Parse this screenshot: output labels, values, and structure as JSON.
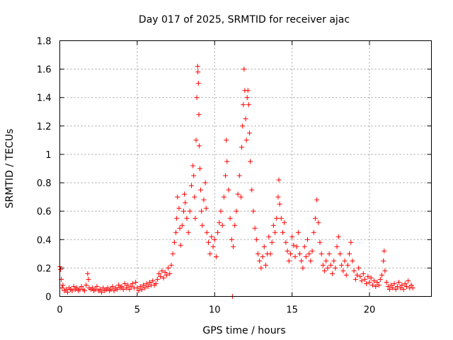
{
  "chart_data": {
    "type": "scatter",
    "title": "Day 017 of 2025, SRMTID for receiver ajac",
    "xlabel": "GPS time / hours",
    "ylabel": "SRMTID / TECUs",
    "xlim": [
      0,
      24
    ],
    "ylim": [
      0,
      1.8
    ],
    "xticks": [
      0,
      5,
      10,
      15,
      20
    ],
    "xtick_labels": [
      "0",
      "5",
      "10",
      "15",
      "20"
    ],
    "yticks": [
      0,
      0.2,
      0.4,
      0.6,
      0.8,
      1.0,
      1.2,
      1.4,
      1.6,
      1.8
    ],
    "ytick_labels": [
      "0",
      "0.2",
      "0.4",
      "0.6",
      "0.8",
      "1",
      "1.2",
      "1.4",
      "1.6",
      "1.8"
    ],
    "grid": true,
    "marker": "+",
    "color": "#ff0000",
    "series": [
      {
        "name": "SRMTID",
        "points": [
          [
            0.0,
            0.21
          ],
          [
            0.05,
            0.19
          ],
          [
            0.1,
            0.12
          ],
          [
            0.15,
            0.06
          ],
          [
            0.2,
            0.08
          ],
          [
            0.3,
            0.04
          ],
          [
            0.4,
            0.05
          ],
          [
            0.5,
            0.03
          ],
          [
            0.6,
            0.06
          ],
          [
            0.7,
            0.05
          ],
          [
            0.8,
            0.04
          ],
          [
            0.9,
            0.07
          ],
          [
            1.0,
            0.05
          ],
          [
            1.1,
            0.06
          ],
          [
            1.2,
            0.04
          ],
          [
            1.3,
            0.05
          ],
          [
            1.4,
            0.07
          ],
          [
            1.5,
            0.05
          ],
          [
            1.6,
            0.04
          ],
          [
            1.7,
            0.08
          ],
          [
            1.8,
            0.16
          ],
          [
            1.85,
            0.12
          ],
          [
            1.9,
            0.06
          ],
          [
            2.0,
            0.05
          ],
          [
            2.1,
            0.06
          ],
          [
            2.2,
            0.04
          ],
          [
            2.3,
            0.05
          ],
          [
            2.4,
            0.07
          ],
          [
            2.5,
            0.04
          ],
          [
            2.6,
            0.05
          ],
          [
            2.7,
            0.03
          ],
          [
            2.8,
            0.06
          ],
          [
            2.9,
            0.04
          ],
          [
            3.0,
            0.05
          ],
          [
            3.1,
            0.06
          ],
          [
            3.2,
            0.04
          ],
          [
            3.3,
            0.05
          ],
          [
            3.4,
            0.07
          ],
          [
            3.5,
            0.04
          ],
          [
            3.6,
            0.06
          ],
          [
            3.7,
            0.05
          ],
          [
            3.8,
            0.08
          ],
          [
            3.9,
            0.06
          ],
          [
            4.0,
            0.07
          ],
          [
            4.1,
            0.05
          ],
          [
            4.2,
            0.09
          ],
          [
            4.3,
            0.06
          ],
          [
            4.4,
            0.08
          ],
          [
            4.5,
            0.05
          ],
          [
            4.6,
            0.07
          ],
          [
            4.7,
            0.09
          ],
          [
            4.8,
            0.06
          ],
          [
            4.9,
            0.1
          ],
          [
            5.0,
            0.06
          ],
          [
            5.1,
            0.04
          ],
          [
            5.2,
            0.07
          ],
          [
            5.3,
            0.05
          ],
          [
            5.4,
            0.08
          ],
          [
            5.5,
            0.06
          ],
          [
            5.6,
            0.09
          ],
          [
            5.7,
            0.07
          ],
          [
            5.8,
            0.1
          ],
          [
            5.9,
            0.08
          ],
          [
            6.0,
            0.11
          ],
          [
            6.1,
            0.08
          ],
          [
            6.2,
            0.09
          ],
          [
            6.3,
            0.12
          ],
          [
            6.4,
            0.16
          ],
          [
            6.5,
            0.14
          ],
          [
            6.6,
            0.18
          ],
          [
            6.7,
            0.13
          ],
          [
            6.8,
            0.17
          ],
          [
            6.9,
            0.15
          ],
          [
            7.0,
            0.2
          ],
          [
            7.1,
            0.16
          ],
          [
            7.2,
            0.22
          ],
          [
            7.3,
            0.3
          ],
          [
            7.4,
            0.38
          ],
          [
            7.5,
            0.45
          ],
          [
            7.55,
            0.55
          ],
          [
            7.6,
            0.7
          ],
          [
            7.7,
            0.62
          ],
          [
            7.75,
            0.48
          ],
          [
            7.8,
            0.36
          ],
          [
            7.9,
            0.5
          ],
          [
            8.0,
            0.6
          ],
          [
            8.05,
            0.72
          ],
          [
            8.1,
            0.66
          ],
          [
            8.2,
            0.55
          ],
          [
            8.3,
            0.45
          ],
          [
            8.4,
            0.6
          ],
          [
            8.5,
            0.78
          ],
          [
            8.6,
            0.92
          ],
          [
            8.65,
            0.85
          ],
          [
            8.7,
            0.7
          ],
          [
            8.75,
            0.55
          ],
          [
            8.8,
            1.1
          ],
          [
            8.85,
            1.4
          ],
          [
            8.9,
            1.62
          ],
          [
            8.92,
            1.58
          ],
          [
            8.95,
            1.5
          ],
          [
            8.98,
            1.28
          ],
          [
            9.0,
            1.06
          ],
          [
            9.05,
            0.9
          ],
          [
            9.1,
            0.75
          ],
          [
            9.15,
            0.6
          ],
          [
            9.2,
            0.5
          ],
          [
            9.3,
            0.68
          ],
          [
            9.4,
            0.8
          ],
          [
            9.45,
            0.62
          ],
          [
            9.5,
            0.45
          ],
          [
            9.6,
            0.38
          ],
          [
            9.7,
            0.3
          ],
          [
            9.8,
            0.42
          ],
          [
            9.9,
            0.35
          ],
          [
            10.0,
            0.4
          ],
          [
            10.1,
            0.28
          ],
          [
            10.2,
            0.45
          ],
          [
            10.3,
            0.52
          ],
          [
            10.4,
            0.6
          ],
          [
            10.5,
            0.5
          ],
          [
            10.6,
            0.7
          ],
          [
            10.7,
            0.85
          ],
          [
            10.75,
            1.1
          ],
          [
            10.8,
            0.95
          ],
          [
            10.9,
            0.75
          ],
          [
            11.0,
            0.55
          ],
          [
            11.1,
            0.4
          ],
          [
            11.15,
            0.0
          ],
          [
            11.2,
            0.35
          ],
          [
            11.3,
            0.5
          ],
          [
            11.4,
            0.6
          ],
          [
            11.5,
            0.72
          ],
          [
            11.6,
            0.85
          ],
          [
            11.7,
            0.7
          ],
          [
            11.75,
            1.05
          ],
          [
            11.8,
            1.2
          ],
          [
            11.85,
            1.35
          ],
          [
            11.9,
            1.6
          ],
          [
            11.95,
            1.45
          ],
          [
            12.0,
            1.25
          ],
          [
            12.05,
            1.1
          ],
          [
            12.1,
            1.4
          ],
          [
            12.15,
            1.45
          ],
          [
            12.2,
            1.35
          ],
          [
            12.25,
            1.15
          ],
          [
            12.3,
            0.95
          ],
          [
            12.4,
            0.75
          ],
          [
            12.5,
            0.6
          ],
          [
            12.6,
            0.48
          ],
          [
            12.7,
            0.4
          ],
          [
            12.8,
            0.3
          ],
          [
            12.9,
            0.25
          ],
          [
            13.0,
            0.2
          ],
          [
            13.1,
            0.28
          ],
          [
            13.2,
            0.35
          ],
          [
            13.3,
            0.22
          ],
          [
            13.4,
            0.3
          ],
          [
            13.5,
            0.42
          ],
          [
            13.6,
            0.3
          ],
          [
            13.7,
            0.38
          ],
          [
            13.8,
            0.5
          ],
          [
            13.9,
            0.45
          ],
          [
            14.0,
            0.55
          ],
          [
            14.1,
            0.7
          ],
          [
            14.15,
            0.82
          ],
          [
            14.2,
            0.65
          ],
          [
            14.3,
            0.55
          ],
          [
            14.4,
            0.45
          ],
          [
            14.5,
            0.52
          ],
          [
            14.6,
            0.38
          ],
          [
            14.7,
            0.32
          ],
          [
            14.8,
            0.25
          ],
          [
            14.9,
            0.3
          ],
          [
            15.0,
            0.42
          ],
          [
            15.1,
            0.36
          ],
          [
            15.2,
            0.28
          ],
          [
            15.3,
            0.35
          ],
          [
            15.4,
            0.45
          ],
          [
            15.5,
            0.3
          ],
          [
            15.6,
            0.25
          ],
          [
            15.7,
            0.2
          ],
          [
            15.8,
            0.35
          ],
          [
            15.9,
            0.28
          ],
          [
            16.0,
            0.4
          ],
          [
            16.1,
            0.3
          ],
          [
            16.2,
            0.25
          ],
          [
            16.3,
            0.32
          ],
          [
            16.4,
            0.45
          ],
          [
            16.5,
            0.55
          ],
          [
            16.6,
            0.68
          ],
          [
            16.7,
            0.52
          ],
          [
            16.8,
            0.38
          ],
          [
            16.9,
            0.3
          ],
          [
            17.0,
            0.22
          ],
          [
            17.1,
            0.18
          ],
          [
            17.2,
            0.25
          ],
          [
            17.3,
            0.2
          ],
          [
            17.4,
            0.3
          ],
          [
            17.5,
            0.22
          ],
          [
            17.6,
            0.16
          ],
          [
            17.7,
            0.25
          ],
          [
            17.8,
            0.2
          ],
          [
            17.9,
            0.35
          ],
          [
            18.0,
            0.42
          ],
          [
            18.1,
            0.3
          ],
          [
            18.2,
            0.22
          ],
          [
            18.3,
            0.18
          ],
          [
            18.4,
            0.25
          ],
          [
            18.5,
            0.15
          ],
          [
            18.6,
            0.22
          ],
          [
            18.7,
            0.3
          ],
          [
            18.8,
            0.38
          ],
          [
            18.9,
            0.25
          ],
          [
            19.0,
            0.18
          ],
          [
            19.1,
            0.12
          ],
          [
            19.2,
            0.15
          ],
          [
            19.3,
            0.2
          ],
          [
            19.4,
            0.14
          ],
          [
            19.5,
            0.11
          ],
          [
            19.6,
            0.16
          ],
          [
            19.7,
            0.12
          ],
          [
            19.8,
            0.09
          ],
          [
            19.9,
            0.14
          ],
          [
            20.0,
            0.1
          ],
          [
            20.1,
            0.13
          ],
          [
            20.2,
            0.08
          ],
          [
            20.3,
            0.11
          ],
          [
            20.4,
            0.07
          ],
          [
            20.5,
            0.1
          ],
          [
            20.6,
            0.08
          ],
          [
            20.7,
            0.12
          ],
          [
            20.8,
            0.15
          ],
          [
            20.9,
            0.25
          ],
          [
            20.95,
            0.32
          ],
          [
            21.0,
            0.18
          ],
          [
            21.1,
            0.1
          ],
          [
            21.2,
            0.07
          ],
          [
            21.3,
            0.05
          ],
          [
            21.4,
            0.08
          ],
          [
            21.5,
            0.06
          ],
          [
            21.6,
            0.09
          ],
          [
            21.7,
            0.05
          ],
          [
            21.8,
            0.07
          ],
          [
            21.9,
            0.1
          ],
          [
            22.0,
            0.06
          ],
          [
            22.1,
            0.08
          ],
          [
            22.2,
            0.05
          ],
          [
            22.3,
            0.09
          ],
          [
            22.4,
            0.07
          ],
          [
            22.5,
            0.11
          ],
          [
            22.6,
            0.06
          ],
          [
            22.7,
            0.08
          ],
          [
            22.8,
            0.06
          ]
        ]
      }
    ]
  }
}
